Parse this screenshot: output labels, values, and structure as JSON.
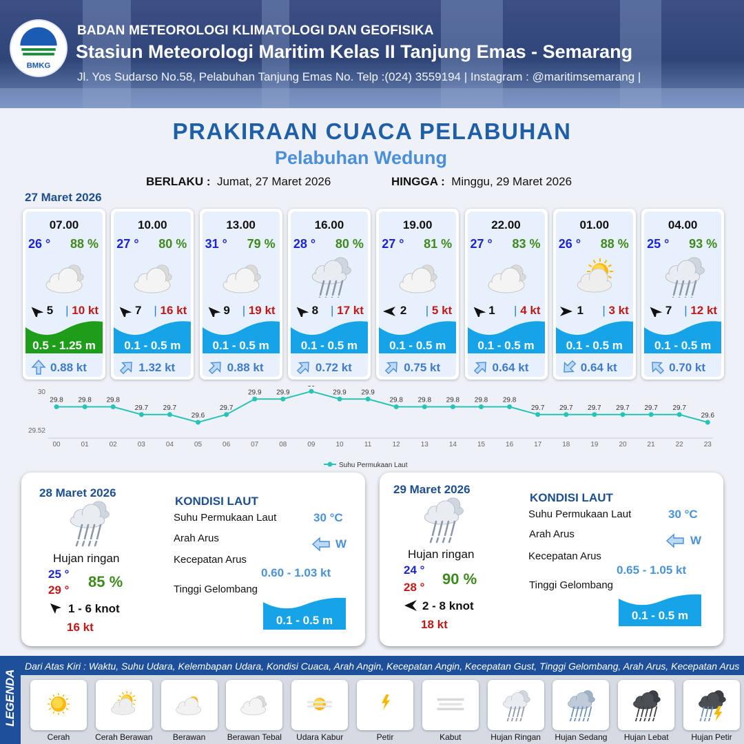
{
  "header": {
    "org": "BADAN METEOROLOGI KLIMATOLOGI DAN GEOFISIKA",
    "station": "Stasiun Meteorologi Maritim Kelas II Tanjung Emas - Semarang",
    "address": "Jl. Yos Sudarso No.58, Pelabuhan Tanjung Emas No. Telp :(024) 3559194 | Instagram : @maritimsemarang |",
    "logo_text": "BMKG"
  },
  "title": "PRAKIRAAN CUACA PELABUHAN",
  "subtitle": "Pelabuhan Wedung",
  "validity": {
    "from_label": "BERLAKU :",
    "from_value": "Jumat, 27 Maret 2026",
    "to_label": "HINGGA :",
    "to_value": "Minggu, 29 Maret 2026"
  },
  "day1_date": "27 Maret 2026",
  "hourly": [
    {
      "time": "07.00",
      "temp": "26 °",
      "hum": "88 %",
      "icon": "berawan-tebal",
      "wind": "5",
      "wind_dir": "NE",
      "gust": "10 kt",
      "wave": "0.5 - 1.25 m",
      "wave_level": "moderate",
      "current": "0.88 kt",
      "current_dir": "N"
    },
    {
      "time": "10.00",
      "temp": "27 °",
      "hum": "80 %",
      "icon": "berawan-tebal",
      "wind": "7",
      "wind_dir": "NE",
      "gust": "16 kt",
      "wave": "0.1 - 0.5 m",
      "wave_level": "low",
      "current": "1.32 kt",
      "current_dir": "NE"
    },
    {
      "time": "13.00",
      "temp": "31 °",
      "hum": "79 %",
      "icon": "berawan-tebal",
      "wind": "9",
      "wind_dir": "NE",
      "gust": "19 kt",
      "wave": "0.1 - 0.5 m",
      "wave_level": "low",
      "current": "0.88 kt",
      "current_dir": "NE"
    },
    {
      "time": "16.00",
      "temp": "28 °",
      "hum": "80 %",
      "icon": "hujan-ringan",
      "wind": "8",
      "wind_dir": "NE",
      "gust": "17 kt",
      "wave": "0.1 - 0.5 m",
      "wave_level": "low",
      "current": "0.72 kt",
      "current_dir": "NE"
    },
    {
      "time": "19.00",
      "temp": "27 °",
      "hum": "81 %",
      "icon": "berawan-tebal",
      "wind": "2",
      "wind_dir": "E",
      "gust": "5 kt",
      "wave": "0.1 - 0.5 m",
      "wave_level": "low",
      "current": "0.75 kt",
      "current_dir": "NE"
    },
    {
      "time": "22.00",
      "temp": "27 °",
      "hum": "83 %",
      "icon": "berawan-tebal",
      "wind": "1",
      "wind_dir": "NE",
      "gust": "4 kt",
      "wave": "0.1 - 0.5 m",
      "wave_level": "low",
      "current": "0.64 kt",
      "current_dir": "NE"
    },
    {
      "time": "01.00",
      "temp": "26 °",
      "hum": "88 %",
      "icon": "cerah-berawan",
      "wind": "1",
      "wind_dir": "W",
      "gust": "3 kt",
      "wave": "0.1 - 0.5 m",
      "wave_level": "low",
      "current": "0.64 kt",
      "current_dir": "SW"
    },
    {
      "time": "04.00",
      "temp": "25 °",
      "hum": "93 %",
      "icon": "hujan-ringan",
      "wind": "7",
      "wind_dir": "NE",
      "gust": "12 kt",
      "wave": "0.1 - 0.5 m",
      "wave_level": "low",
      "current": "0.70 kt",
      "current_dir": "NW"
    }
  ],
  "chart_data": {
    "type": "line",
    "x": [
      "00",
      "01",
      "02",
      "03",
      "04",
      "05",
      "06",
      "07",
      "08",
      "09",
      "10",
      "11",
      "12",
      "13",
      "14",
      "15",
      "16",
      "17",
      "18",
      "19",
      "20",
      "21",
      "22",
      "23"
    ],
    "series": [
      {
        "name": "Suhu Permukaan Laut",
        "values": [
          29.8,
          29.8,
          29.8,
          29.7,
          29.7,
          29.6,
          29.7,
          29.9,
          29.9,
          30.0,
          29.9,
          29.9,
          29.8,
          29.8,
          29.8,
          29.8,
          29.8,
          29.7,
          29.7,
          29.7,
          29.7,
          29.7,
          29.7,
          29.6
        ],
        "color": "#27c4b5"
      }
    ],
    "y_ticks": [
      "30",
      "29.52"
    ],
    "ylim": [
      29.52,
      30.0
    ],
    "legend_position": "bottom"
  },
  "days": [
    {
      "date": "28 Maret 2026",
      "icon": "hujan-ringan",
      "condition": "Hujan ringan",
      "tmin": "25 °",
      "tmax": "29 °",
      "hum": "85 %",
      "wind": "1 - 6 knot",
      "wind_dir": "SE",
      "gust": "16 kt",
      "sea_head": "KONDISI LAUT",
      "sst_label": "Suhu Permukaan Laut",
      "sst": "30 °C",
      "dir_label": "Arah Arus",
      "dir": "W",
      "speed_label": "Kecepatan Arus",
      "speed": "0.60 - 1.03 kt",
      "wave_label": "Tinggi Gelombang",
      "wave": "0.1 - 0.5 m"
    },
    {
      "date": "29 Maret 2026",
      "icon": "hujan-ringan",
      "condition": "Hujan ringan",
      "tmin": "24 °",
      "tmax": "28 °",
      "hum": "90 %",
      "wind": "2 - 8 knot",
      "wind_dir": "E",
      "gust": "18 kt",
      "sea_head": "KONDISI LAUT",
      "sst_label": "Suhu Permukaan Laut",
      "sst": "30 °C",
      "dir_label": "Arah Arus",
      "dir": "W",
      "speed_label": "Kecepatan Arus",
      "speed": "0.65 - 1.05 kt",
      "wave_label": "Tinggi Gelombang",
      "wave": "0.1 - 0.5 m"
    }
  ],
  "legend": {
    "title": "LEGENDA",
    "description": "Dari Atas Kiri : Waktu, Suhu Udara, Kelembapan Udara, Kondisi Cuaca, Arah Angin, Kecepatan Angin, Kecepatan Gust, Tinggi Gelombang, Arah Arus, Kecepatan Arus",
    "items": [
      {
        "label": "Cerah",
        "icon": "cerah"
      },
      {
        "label": "Cerah Berawan",
        "icon": "cerah-berawan"
      },
      {
        "label": "Berawan",
        "icon": "berawan"
      },
      {
        "label": "Berawan Tebal",
        "icon": "berawan-tebal"
      },
      {
        "label": "Udara Kabur",
        "icon": "udara-kabur"
      },
      {
        "label": "Petir",
        "icon": "petir"
      },
      {
        "label": "Kabut",
        "icon": "kabut"
      },
      {
        "label": "Hujan Ringan",
        "icon": "hujan-ringan"
      },
      {
        "label": "Hujan Sedang",
        "icon": "hujan-sedang"
      },
      {
        "label": "Hujan Lebat",
        "icon": "hujan-lebat"
      },
      {
        "label": "Hujan Petir",
        "icon": "hujan-petir"
      }
    ]
  },
  "colors": {
    "wave_moderate": "#1e9d1a",
    "wave_low": "#17a3e8",
    "current_arrow": "#4a8fd8",
    "title": "#1f5fa8"
  }
}
